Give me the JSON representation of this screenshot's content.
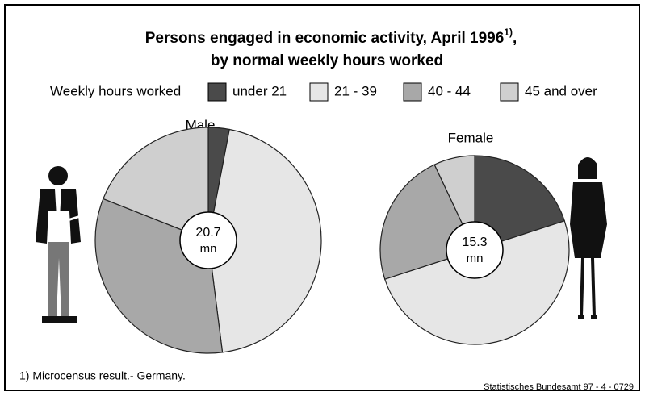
{
  "header": {
    "title_line1": "Persons engaged in economic activity, April 1996",
    "title_note": "1)",
    "title_line1_end": ",",
    "title_line2": "by normal weekly hours worked",
    "legend_title": "Weekly hours worked"
  },
  "chart_data": [
    {
      "type": "pie",
      "title": "Male",
      "categories": [
        "under 21",
        "21 - 39",
        "40 - 44",
        "45 and over"
      ],
      "values": [
        3,
        45,
        33,
        19
      ],
      "colors": [
        "#4a4a4a",
        "#e6e6e6",
        "#a8a8a8",
        "#cfcfcf"
      ],
      "total": 20.7,
      "unit": "mn"
    },
    {
      "type": "pie",
      "title": "Female",
      "categories": [
        "under 21",
        "21 - 39",
        "40 - 44",
        "45 and over"
      ],
      "values": [
        20,
        50,
        23,
        7
      ],
      "colors": [
        "#4a4a4a",
        "#e6e6e6",
        "#a8a8a8",
        "#cfcfcf"
      ],
      "total": 15.3,
      "unit": "mn"
    }
  ],
  "footer": {
    "footnote": "1) Microcensus result.- Germany.",
    "source": "Statistisches Bundesamt 97 - 4 - 0729"
  }
}
